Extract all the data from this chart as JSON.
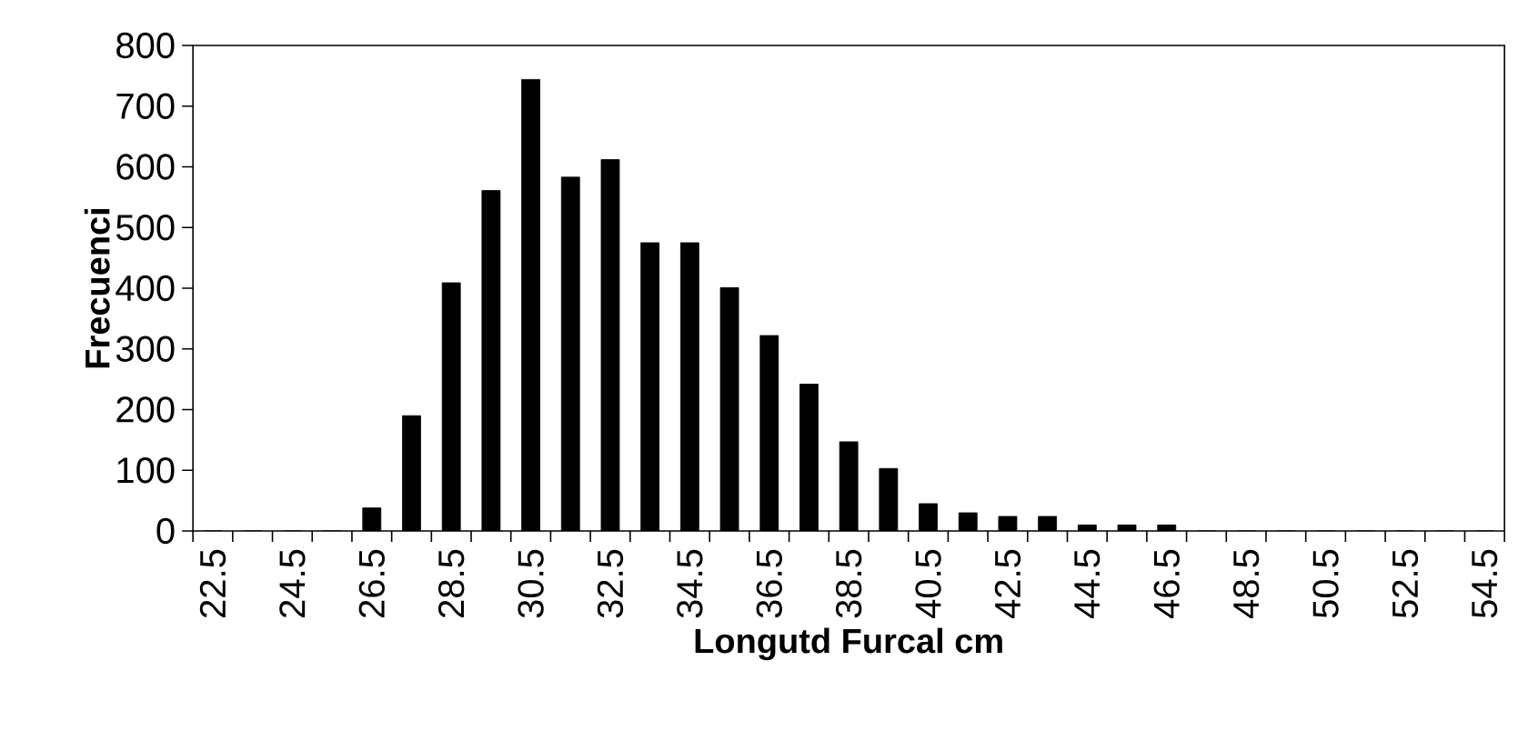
{
  "chart_data": {
    "type": "bar",
    "xlabel": "Longutd Furcal cm",
    "ylabel": "Frecuenci",
    "categories": [
      "22.5",
      null,
      "24.5",
      null,
      "26.5",
      null,
      "28.5",
      null,
      "30.5",
      null,
      "32.5",
      null,
      "34.5",
      null,
      "36.5",
      null,
      "38.5",
      null,
      "40.5",
      null,
      "42.5",
      null,
      "44.5",
      null,
      "46.5",
      null,
      "48.5",
      null,
      "50.5",
      null,
      "52.5",
      null,
      "54.5"
    ],
    "values": [
      0,
      0,
      0,
      0,
      38,
      190,
      409,
      561,
      744,
      583,
      612,
      475,
      475,
      401,
      322,
      242,
      147,
      103,
      45,
      30,
      24,
      24,
      10,
      10,
      10,
      0,
      0,
      0,
      0,
      0,
      0,
      0,
      0
    ],
    "color": "#000000",
    "ylim": [
      0,
      800
    ],
    "yticks": [
      0,
      100,
      200,
      300,
      400,
      500,
      600,
      700,
      800
    ]
  }
}
